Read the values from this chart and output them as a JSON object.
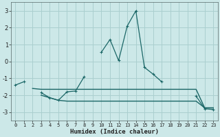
{
  "xlabel": "Humidex (Indice chaleur)",
  "x": [
    0,
    1,
    2,
    3,
    4,
    5,
    6,
    7,
    8,
    9,
    10,
    11,
    12,
    13,
    14,
    15,
    16,
    17,
    18,
    19,
    20,
    21,
    22,
    23
  ],
  "line1": [
    -1.4,
    -1.2,
    null,
    -1.85,
    -2.15,
    -2.3,
    -1.8,
    -1.75,
    -0.9,
    null,
    0.55,
    1.3,
    0.05,
    2.1,
    3.0,
    -0.35,
    -0.75,
    -1.2,
    null,
    null,
    null,
    -2.05,
    -2.8,
    -2.85
  ],
  "line2": [
    null,
    null,
    -1.6,
    -1.65,
    -1.65,
    -1.65,
    -1.65,
    -1.65,
    -1.65,
    -1.65,
    -1.65,
    -1.65,
    -1.65,
    -1.65,
    -1.65,
    -1.65,
    -1.65,
    -1.65,
    -1.65,
    -1.65,
    -1.65,
    -1.65,
    -2.75,
    -2.75
  ],
  "line3": [
    null,
    null,
    null,
    -2.0,
    -2.15,
    -2.3,
    -2.35,
    -2.35,
    -2.35,
    -2.35,
    -2.35,
    -2.35,
    -2.35,
    -2.35,
    -2.35,
    -2.35,
    -2.35,
    -2.35,
    -2.35,
    -2.35,
    -2.35,
    -2.35,
    -2.75,
    -2.75
  ],
  "bg_color": "#cce8e8",
  "grid_color": "#aacfcf",
  "line_color": "#1a6666",
  "ylim": [
    -3.5,
    3.5
  ],
  "xlim": [
    -0.5,
    23.5
  ],
  "yticks": [
    -3,
    -2,
    -1,
    0,
    1,
    2,
    3
  ],
  "xticks": [
    0,
    1,
    2,
    3,
    4,
    5,
    6,
    7,
    8,
    9,
    10,
    11,
    12,
    13,
    14,
    15,
    16,
    17,
    18,
    19,
    20,
    21,
    22,
    23
  ]
}
